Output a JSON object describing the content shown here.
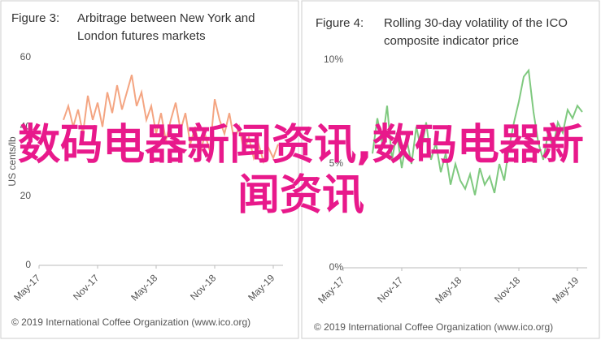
{
  "chart_data": [
    {
      "type": "line",
      "figure_label": "Figure 3:",
      "title": "Arbitrage between New York and London futures markets",
      "ylabel": "US cents/lb",
      "color": "#f4a582",
      "x": [
        2.5,
        3,
        3.5,
        4,
        4.5,
        5,
        5.5,
        6,
        6.5,
        7,
        7.5,
        8,
        8.5,
        9,
        9.5,
        10,
        10.5,
        11,
        11.5,
        12,
        12.5,
        13,
        13.5,
        14,
        14.5,
        15,
        15.5,
        16,
        16.5,
        17,
        17.5,
        18,
        18.5,
        19,
        19.5,
        20,
        20.5,
        21,
        21.5,
        22,
        22.5,
        23,
        23.5,
        24,
        24.5
      ],
      "values": [
        42,
        46,
        40,
        45,
        38,
        49,
        42,
        47,
        40,
        50,
        44,
        52,
        45,
        50,
        55,
        46,
        50,
        42,
        46,
        38,
        44,
        36,
        42,
        47,
        39,
        44,
        35,
        40,
        32,
        38,
        33,
        48,
        42,
        38,
        44,
        36,
        40,
        33,
        37,
        31,
        35,
        30,
        34,
        31,
        35
      ],
      "xlim": [
        0,
        25
      ],
      "xticks": [
        {
          "value": 0,
          "label": "May-17"
        },
        {
          "value": 6,
          "label": "Nov-17"
        },
        {
          "value": 12,
          "label": "May-18"
        },
        {
          "value": 18,
          "label": "Nov-18"
        },
        {
          "value": 24,
          "label": "May-19"
        }
      ],
      "ylim": [
        0,
        60
      ],
      "yticks": [
        0,
        20,
        40,
        60
      ],
      "grid": false,
      "source": "© 2019 International Coffee Organization (www.ico.org)"
    },
    {
      "type": "line",
      "figure_label": "Figure 4:",
      "title": "Rolling 30-day volatility of the ICO composite indicator price",
      "color": "#7fc97f",
      "x": [
        3,
        3.5,
        4,
        4.5,
        5,
        5.5,
        6,
        6.5,
        7,
        7.5,
        8,
        8.5,
        9,
        9.5,
        10,
        10.5,
        11,
        11.5,
        12,
        12.5,
        13,
        13.5,
        14,
        14.5,
        15,
        15.5,
        16,
        16.5,
        17,
        17.5,
        18,
        18.5,
        19,
        19.5,
        20,
        20.5,
        21,
        21.5,
        22,
        22.5,
        23,
        23.5,
        24,
        24.5
      ],
      "values": [
        5.5,
        7.2,
        6.0,
        7.8,
        5.2,
        6.5,
        4.8,
        6.2,
        5.0,
        6.8,
        5.6,
        7.0,
        5.2,
        6.0,
        4.6,
        5.5,
        4.0,
        5.0,
        4.2,
        3.8,
        4.5,
        3.5,
        4.8,
        4.0,
        4.4,
        3.6,
        5.0,
        4.2,
        5.8,
        7.0,
        8.0,
        9.2,
        9.5,
        7.5,
        6.0,
        5.2,
        6.5,
        5.8,
        7.0,
        6.5,
        7.6,
        7.2,
        7.8,
        7.5
      ],
      "xlim": [
        0,
        25
      ],
      "xticks": [
        {
          "value": 0,
          "label": "May-17"
        },
        {
          "value": 6,
          "label": "Nov-17"
        },
        {
          "value": 12,
          "label": "May-18"
        },
        {
          "value": 18,
          "label": "Nov-18"
        },
        {
          "value": 24,
          "label": "May-19"
        }
      ],
      "ylim": [
        0,
        10
      ],
      "yticks": [
        {
          "value": 0,
          "label": "0%"
        },
        {
          "value": 5,
          "label": "5%"
        },
        {
          "value": 10,
          "label": "10%"
        }
      ],
      "grid": false,
      "source": "© 2019 International Coffee Organization (www.ico.org)"
    }
  ],
  "overlay_text": "数码电器新闻资讯,数码电器新闻资讯"
}
